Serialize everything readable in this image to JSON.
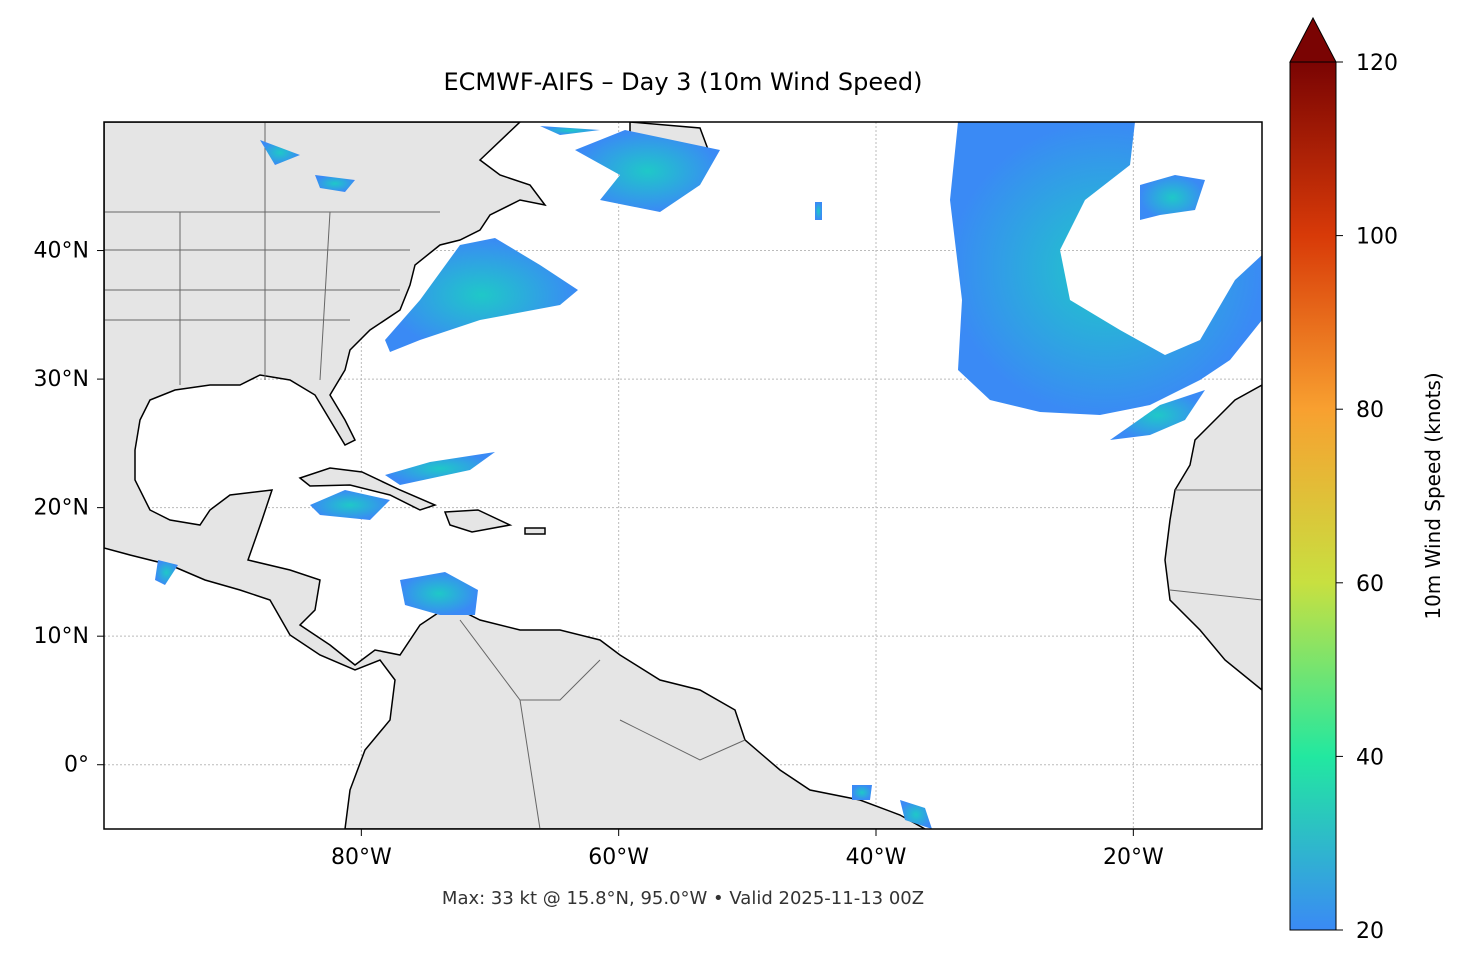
{
  "chart_data": {
    "type": "map",
    "title": "ECMWF-AIFS – Day 3 (10m Wind Speed)",
    "footnote": "Max: 33 kt @ 15.8°N, 95.0°W • Valid 2025-11-13 00Z",
    "xlim": [
      -100,
      -10
    ],
    "ylim": [
      -5,
      50
    ],
    "xticks": [
      {
        "value": -80,
        "label": "80°W"
      },
      {
        "value": -60,
        "label": "60°W"
      },
      {
        "value": -40,
        "label": "40°W"
      },
      {
        "value": -20,
        "label": "20°W"
      }
    ],
    "yticks": [
      {
        "value": 0,
        "label": "0°"
      },
      {
        "value": 10,
        "label": "10°N"
      },
      {
        "value": 20,
        "label": "20°N"
      },
      {
        "value": 30,
        "label": "30°N"
      },
      {
        "value": 40,
        "label": "40°N"
      }
    ],
    "grid": true,
    "colorbar": {
      "label": "10m Wind Speed (knots)",
      "lim": [
        20,
        120
      ],
      "ticks": [
        20,
        40,
        60,
        80,
        100,
        120
      ],
      "colors": [
        "#3a8af5",
        "#22e8a0",
        "#c8e040",
        "#f8a030",
        "#d83a08",
        "#7a0403"
      ]
    }
  }
}
